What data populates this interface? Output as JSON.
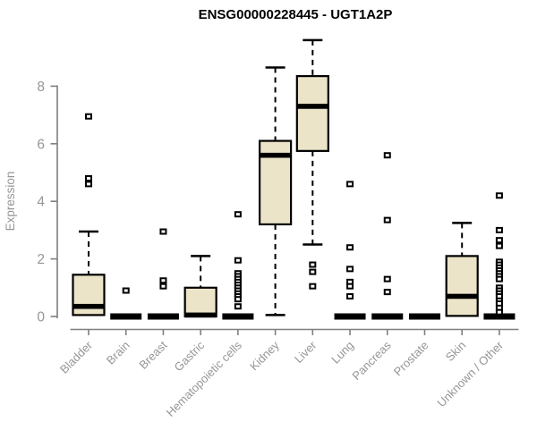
{
  "title": "ENSG00000228445 - UGT1A2P",
  "chart_data": {
    "type": "boxplot",
    "title": "ENSG00000228445 - UGT1A2P",
    "xlabel": "",
    "ylabel": "Expression",
    "ylim": [
      0,
      9.7
    ],
    "yticks": [
      "0",
      "2",
      "4",
      "6",
      "8"
    ],
    "grid": false,
    "legend": "none",
    "categories": [
      "Bladder",
      "Brain",
      "Breast",
      "Gastric",
      "Hematopoietic cells",
      "Kidney",
      "Liver",
      "Lung",
      "Pancreas",
      "Prostate",
      "Skin",
      "Unknown / Other"
    ],
    "series": [
      {
        "name": "Bladder",
        "low": 0.05,
        "q1": 0.05,
        "median": 0.35,
        "q3": 1.45,
        "high": 2.95,
        "outliers": [
          6.95,
          4.8,
          4.6
        ]
      },
      {
        "name": "Brain",
        "low": 0,
        "q1": 0,
        "median": 0,
        "q3": 0,
        "high": 0,
        "outliers": [
          0.9
        ]
      },
      {
        "name": "Breast",
        "low": 0,
        "q1": 0,
        "median": 0,
        "q3": 0,
        "high": 0,
        "outliers": [
          2.95,
          1.25,
          1.05
        ]
      },
      {
        "name": "Gastric",
        "low": 0,
        "q1": 0,
        "median": 0.05,
        "q3": 1.0,
        "high": 2.1,
        "outliers": []
      },
      {
        "name": "Hematopoietic cells",
        "low": 0,
        "q1": 0,
        "median": 0,
        "q3": 0,
        "high": 0,
        "outliers": [
          3.55,
          1.95,
          1.5,
          1.4,
          1.3,
          1.2,
          1.1,
          1.0,
          0.9,
          0.8,
          0.7,
          0.6,
          0.35
        ]
      },
      {
        "name": "Kidney",
        "low": 0.05,
        "q1": 3.2,
        "median": 5.6,
        "q3": 6.1,
        "high": 8.65,
        "outliers": []
      },
      {
        "name": "Liver",
        "low": 2.5,
        "q1": 5.75,
        "median": 7.3,
        "q3": 8.35,
        "high": 9.6,
        "outliers": [
          1.8,
          1.55,
          1.05
        ]
      },
      {
        "name": "Lung",
        "low": 0,
        "q1": 0,
        "median": 0,
        "q3": 0,
        "high": 0,
        "outliers": [
          4.6,
          2.4,
          1.65,
          1.2,
          1.05,
          0.7
        ]
      },
      {
        "name": "Pancreas",
        "low": 0,
        "q1": 0,
        "median": 0,
        "q3": 0,
        "high": 0,
        "outliers": [
          5.6,
          3.35,
          1.3,
          0.85
        ]
      },
      {
        "name": "Prostate",
        "low": 0,
        "q1": 0,
        "median": 0,
        "q3": 0,
        "high": 0,
        "outliers": []
      },
      {
        "name": "Skin",
        "low": 0,
        "q1": 0.02,
        "median": 0.7,
        "q3": 2.1,
        "high": 3.25,
        "outliers": []
      },
      {
        "name": "Unknown / Other",
        "low": 0,
        "q1": 0,
        "median": 0,
        "q3": 0,
        "high": 0,
        "outliers": [
          4.2,
          3.0,
          2.65,
          2.45,
          1.9,
          1.8,
          1.7,
          1.6,
          1.5,
          1.4,
          1.3,
          1.0,
          0.9,
          0.8,
          0.7,
          0.55,
          0.45,
          0.3,
          0.15
        ]
      }
    ],
    "colors": {
      "box_fill": "#EBE4C9",
      "box_stroke": "#000000",
      "median": "#000000",
      "outlier": "#000000",
      "axis_line": "#7F7F7F",
      "axis_text": "#969696",
      "title": "#000000",
      "background": "#FFFFFF"
    }
  }
}
